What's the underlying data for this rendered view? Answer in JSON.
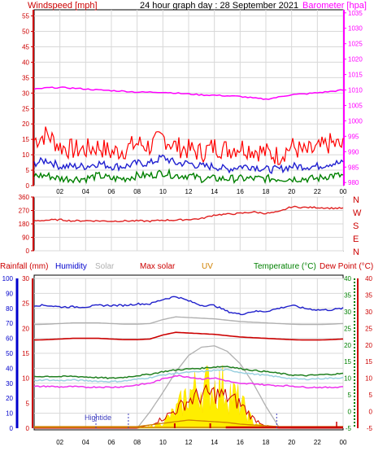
{
  "colors": {
    "wind": "#ff0000",
    "gust": "#ff0000",
    "wind_dark": "#2020d0",
    "wind_green": "#008000",
    "baro": "#ff00ff",
    "dir": "#e02020",
    "rain": "#cc0000",
    "humidity": "#0000cc",
    "solar": "#b0b0b0",
    "maxsolar": "#cc0000",
    "uv": "#d08000",
    "temp": "#008000",
    "dew": "#cc0000",
    "grid": "#d8d8d8",
    "frame": "#000000"
  },
  "header": {
    "wind_title": "Windspeed [mph]",
    "graph_title": "24 hour graph day : 28 September 2021",
    "baro_title": "Barometer [hpa]"
  },
  "panel2": {
    "compass": [
      "N",
      "W",
      "S",
      "E",
      "N"
    ]
  },
  "panel3": {
    "labels": {
      "rain": "Rainfall (mm)",
      "humidity": "Humidity",
      "solar": "Solar",
      "maxsolar": "Max solar",
      "uv": "UV",
      "temp": "Temperature (°C)",
      "dew": "Dew Point (°C)",
      "hightide": "Hightide"
    }
  },
  "chart_data": [
    {
      "type": "line",
      "title": "Windspeed [mph] / Barometer [hpa]",
      "x_ticks": [
        "02",
        "04",
        "06",
        "08",
        "10",
        "12",
        "14",
        "16",
        "18",
        "20",
        "22",
        "00"
      ],
      "y_ticks": [
        0,
        5,
        10,
        15,
        20,
        25,
        30,
        35,
        40,
        45,
        50,
        55
      ],
      "y2_ticks": [
        980,
        985,
        990,
        995,
        1000,
        1005,
        1010,
        1015,
        1020,
        1025,
        1030,
        1035
      ],
      "ylim": [
        0,
        57
      ],
      "y2lim": [
        979,
        1036
      ],
      "x": [
        0,
        1,
        2,
        3,
        4,
        5,
        6,
        7,
        8,
        9,
        10,
        11,
        12,
        13,
        14,
        15,
        16,
        17,
        18,
        19,
        20,
        21,
        22,
        23,
        24
      ],
      "series": [
        {
          "name": "gust",
          "values": [
            14,
            16,
            12,
            11,
            11,
            12,
            10,
            11,
            13,
            12,
            15,
            12,
            11,
            10,
            12,
            11,
            12,
            11,
            10,
            9,
            12,
            10,
            11,
            13,
            12
          ]
        },
        {
          "name": "average",
          "values": [
            7,
            8,
            6,
            6,
            6,
            7,
            6,
            6,
            7,
            7,
            9,
            7,
            7,
            6,
            6,
            5,
            6,
            6,
            5,
            5,
            6,
            6,
            6,
            7,
            7
          ]
        },
        {
          "name": "low",
          "values": [
            3,
            3,
            2,
            2,
            2,
            3,
            2,
            2,
            3,
            3,
            4,
            3,
            3,
            2,
            2,
            2,
            2,
            2,
            2,
            2,
            2,
            2,
            2,
            3,
            3
          ]
        },
        {
          "name": "barometer",
          "y_axis": "right",
          "values": [
            1010.2,
            1010.7,
            1010.8,
            1010.6,
            1010.3,
            1010.0,
            1009.8,
            1009.6,
            1009.3,
            1009.3,
            1009.3,
            1009.0,
            1008.7,
            1008.4,
            1008.3,
            1008.1,
            1007.9,
            1007.4,
            1007.0,
            1007.7,
            1008.5,
            1008.7,
            1009.1,
            1009.5,
            1010.0
          ]
        }
      ]
    },
    {
      "type": "line",
      "title": "Wind direction",
      "x_ticks": [
        "02",
        "04",
        "06",
        "08",
        "10",
        "12",
        "14",
        "16",
        "18",
        "20",
        "22",
        "00"
      ],
      "y_ticks": [
        0,
        90,
        180,
        270,
        360
      ],
      "ylim": [
        0,
        360
      ],
      "x": [
        0,
        1,
        2,
        3,
        4,
        5,
        6,
        7,
        8,
        9,
        10,
        11,
        12,
        13,
        14,
        15,
        16,
        17,
        18,
        19,
        20,
        21,
        22,
        23,
        24
      ],
      "series": [
        {
          "name": "direction",
          "values": [
            200,
            205,
            208,
            200,
            202,
            200,
            198,
            200,
            200,
            198,
            205,
            205,
            210,
            215,
            240,
            245,
            250,
            260,
            250,
            260,
            295,
            290,
            290,
            285,
            285
          ]
        }
      ]
    },
    {
      "type": "line",
      "title": "Rainfall / Humidity / Solar / UV / Temperature / Dew Point",
      "x_ticks": [
        "02",
        "04",
        "06",
        "08",
        "10",
        "12",
        "14",
        "16",
        "18",
        "20",
        "22",
        "00"
      ],
      "y_ticks_humidity": [
        0,
        10,
        20,
        30,
        40,
        50,
        60,
        70,
        80,
        90,
        100
      ],
      "y_ticks_rain": [
        0,
        5,
        10,
        15,
        20,
        25,
        30
      ],
      "y_ticks_temp": [
        -5,
        0,
        5,
        10,
        15,
        20,
        25,
        30,
        35,
        40
      ],
      "humidity_lim": [
        0,
        100
      ],
      "temp_lim": [
        -5,
        40
      ],
      "x": [
        0,
        1,
        2,
        3,
        4,
        5,
        6,
        7,
        8,
        9,
        10,
        11,
        12,
        13,
        14,
        15,
        16,
        17,
        18,
        19,
        20,
        21,
        22,
        23,
        24
      ],
      "series": [
        {
          "name": "Humidity",
          "values": [
            82,
            82,
            81,
            81,
            81,
            82,
            82,
            82,
            83,
            83,
            86,
            88,
            85,
            82,
            82,
            78,
            76,
            78,
            78,
            80,
            82,
            80,
            79,
            79,
            80
          ]
        },
        {
          "name": "Solar",
          "values": [
            0,
            0,
            0,
            0,
            0,
            0,
            0,
            0,
            0,
            120,
            260,
            410,
            530,
            590,
            600,
            560,
            470,
            330,
            160,
            10,
            0,
            0,
            0,
            0,
            0
          ]
        },
        {
          "name": "Solar measured",
          "values": [
            0,
            0,
            0,
            0,
            0,
            0,
            0,
            0,
            0,
            10,
            40,
            110,
            230,
            270,
            280,
            260,
            170,
            40,
            10,
            0,
            0,
            0,
            0,
            0,
            0
          ]
        },
        {
          "name": "Max solar",
          "values": [
            0,
            0,
            0,
            0,
            0,
            0,
            0,
            0,
            0,
            4,
            12,
            22,
            34,
            40,
            42,
            38,
            30,
            12,
            3,
            0,
            0,
            0,
            0,
            0,
            0
          ]
        },
        {
          "name": "UV",
          "values": [
            0,
            0,
            0,
            0,
            0,
            0,
            0,
            0,
            0,
            0.2,
            0.4,
            0.6,
            0.8,
            0.7,
            0.6,
            0.5,
            0.3,
            0.2,
            0.1,
            0,
            0,
            0,
            0,
            0,
            0
          ]
        },
        {
          "name": "Temperature",
          "values": [
            10.5,
            10.6,
            10.5,
            10.6,
            10.4,
            10.2,
            10.0,
            10.3,
            10.8,
            11.2,
            12.0,
            12.5,
            12.8,
            13.0,
            13.4,
            13.6,
            12.9,
            12.4,
            12.0,
            11.5,
            11.0,
            10.8,
            11.0,
            11.2,
            11.4
          ]
        },
        {
          "name": "Temperature low",
          "values": [
            9.4,
            9.5,
            9.3,
            9.5,
            9.3,
            9.1,
            9.0,
            9.2,
            9.7,
            10.2,
            11.0,
            11.5,
            11.8,
            12.0,
            12.4,
            12.5,
            11.8,
            11.3,
            10.9,
            10.4,
            9.9,
            9.7,
            9.9,
            10.0,
            10.2
          ]
        },
        {
          "name": "Dew Point",
          "values": [
            7.5,
            7.6,
            7.4,
            7.5,
            7.3,
            7.4,
            7.3,
            7.5,
            8.0,
            8.5,
            9.8,
            10.8,
            10.4,
            9.8,
            10.1,
            9.2,
            8.3,
            8.4,
            8.0,
            7.8,
            7.7,
            7.3,
            7.3,
            7.2,
            7.5
          ]
        },
        {
          "name": "Dew Point high",
          "values": [
            21.5,
            21.6,
            21.8,
            22.0,
            22.0,
            22.0,
            21.8,
            21.6,
            21.6,
            21.8,
            23.0,
            23.8,
            23.6,
            23.4,
            23.2,
            22.8,
            22.4,
            22.2,
            22.0,
            21.8,
            21.6,
            21.5,
            21.5,
            21.6,
            21.8
          ]
        },
        {
          "name": "Solar max curve",
          "values": [
            22,
            22,
            22,
            22,
            22,
            22,
            22,
            22,
            22,
            22,
            22,
            22,
            22,
            22,
            22,
            22,
            22,
            22,
            22,
            22,
            22,
            22,
            22,
            22,
            22
          ]
        },
        {
          "name": "Rainfall",
          "values": [
            0,
            0,
            0,
            0,
            0,
            0,
            0,
            0,
            0,
            0,
            0,
            0,
            0,
            0,
            0,
            0,
            0,
            0,
            0,
            0,
            0,
            0,
            0,
            0,
            0
          ]
        }
      ]
    }
  ]
}
